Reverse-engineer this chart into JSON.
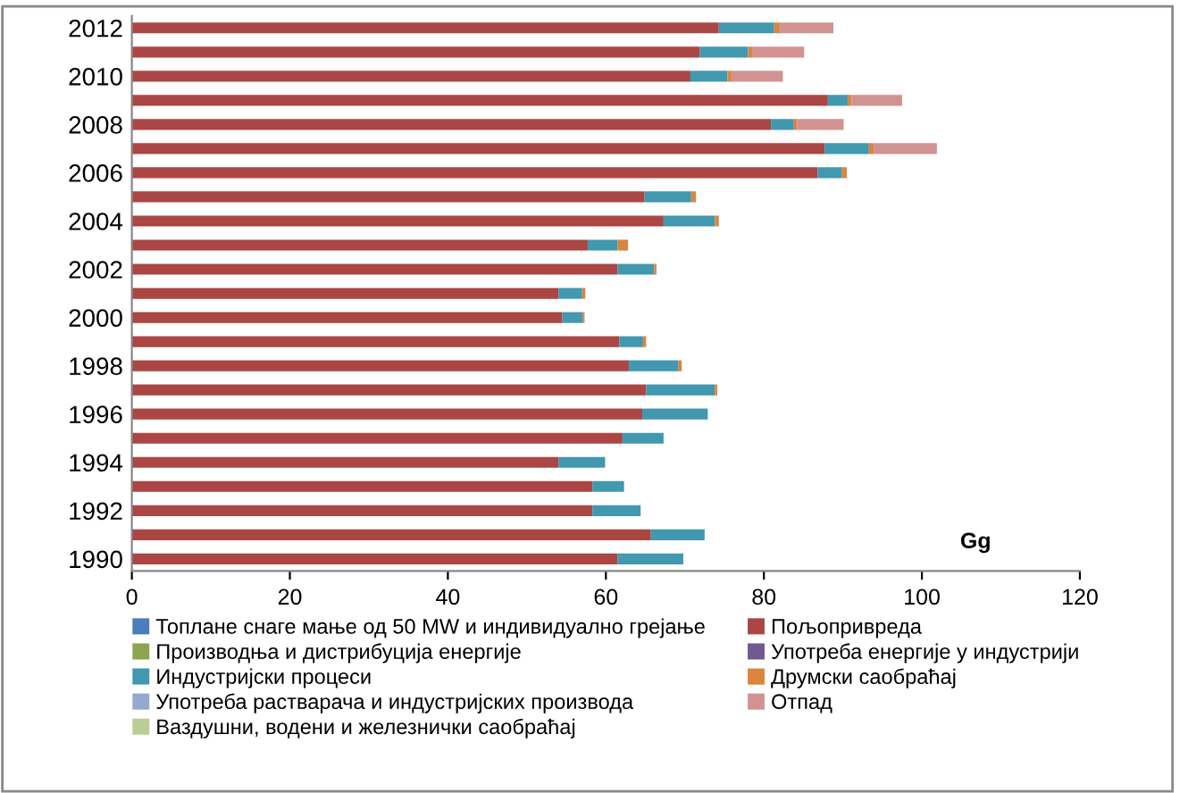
{
  "chart_data": {
    "type": "bar",
    "orientation": "horizontal",
    "stacked": true,
    "categories": [
      "2012",
      null,
      "2010",
      null,
      "2008",
      null,
      "2006",
      null,
      "2004",
      null,
      "2002",
      null,
      "2000",
      null,
      "1998",
      null,
      "1996",
      null,
      "1994",
      null,
      "1992",
      null,
      "1990"
    ],
    "xlabel": "Gg",
    "xlim": [
      0,
      120
    ],
    "xticks": [
      0,
      20,
      40,
      60,
      80,
      100,
      120
    ],
    "grid": false,
    "legend": "bottom",
    "series": [
      {
        "name": "Топлане снаге мање од 50 MW и индивидуално грејање",
        "color": "#4a7ebb",
        "values": [
          0,
          0,
          0,
          0,
          0,
          0,
          0,
          0,
          0,
          0,
          0,
          0,
          0,
          0,
          0,
          0,
          0,
          0,
          0,
          0,
          0,
          0,
          0
        ]
      },
      {
        "name": "Пољопривреда",
        "color": "#aa4643",
        "values": [
          74.3,
          71.9,
          70.7,
          88.1,
          80.9,
          87.7,
          86.8,
          64.9,
          67.3,
          57.7,
          61.5,
          54.0,
          54.5,
          61.7,
          62.9,
          65.1,
          64.6,
          62.1,
          54.0,
          58.3,
          58.3,
          65.7,
          61.5
        ]
      },
      {
        "name": "Производња и дистрибуција енергије",
        "color": "#89a54e",
        "values": [
          0,
          0,
          0,
          0,
          0,
          0,
          0,
          0,
          0,
          0,
          0,
          0,
          0,
          0,
          0,
          0,
          0,
          0,
          0,
          0,
          0,
          0,
          0
        ]
      },
      {
        "name": "Употреба енергије у индустрији",
        "color": "#71588f",
        "values": [
          0,
          0,
          0,
          0,
          0,
          0,
          0,
          0,
          0,
          0,
          0,
          0,
          0,
          0,
          0,
          0,
          0,
          0,
          0,
          0,
          0,
          0,
          0
        ]
      },
      {
        "name": "Индустријски процеси",
        "color": "#4198af",
        "values": [
          7.0,
          6.1,
          4.7,
          2.5,
          2.9,
          5.6,
          3.1,
          5.9,
          6.5,
          3.8,
          4.6,
          3.0,
          2.6,
          3.0,
          6.3,
          8.7,
          8.3,
          5.2,
          5.9,
          4.0,
          6.1,
          6.8,
          8.3
        ]
      },
      {
        "name": "Друмски саобраћај",
        "color": "#db843d",
        "values": [
          0.7,
          0.6,
          0.5,
          0.5,
          0.4,
          0.6,
          0.6,
          0.6,
          0.5,
          1.3,
          0.3,
          0.4,
          0.2,
          0.4,
          0.4,
          0.3,
          0,
          0,
          0,
          0,
          0,
          0,
          0
        ]
      },
      {
        "name": "Употреба растварача и индустријских производа",
        "color": "#93a9cf",
        "values": [
          0,
          0,
          0,
          0,
          0,
          0,
          0,
          0,
          0,
          0,
          0,
          0,
          0,
          0,
          0,
          0,
          0,
          0,
          0,
          0,
          0,
          0,
          0
        ]
      },
      {
        "name": "Отпад",
        "color": "#d19392",
        "values": [
          6.8,
          6.5,
          6.5,
          6.4,
          5.9,
          8.0,
          0,
          0,
          0,
          0,
          0,
          0,
          0,
          0,
          0,
          0,
          0,
          0,
          0,
          0,
          0,
          0,
          0
        ]
      },
      {
        "name": "Ваздушни, водени и железнички саобраћај",
        "color": "#b9cd96",
        "values": [
          0,
          0,
          0,
          0,
          0,
          0,
          0,
          0,
          0,
          0,
          0,
          0,
          0,
          0,
          0,
          0,
          0,
          0,
          0,
          0,
          0,
          0,
          0
        ]
      }
    ]
  }
}
